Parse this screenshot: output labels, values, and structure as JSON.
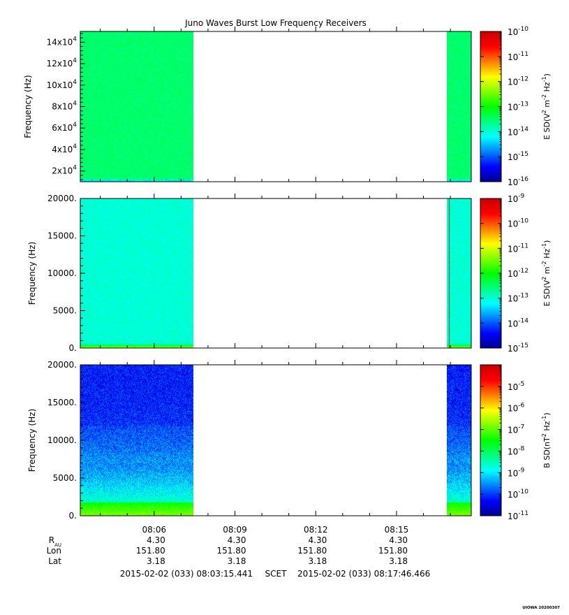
{
  "figure": {
    "title": "Juno Waves Burst Low Frequency Receivers",
    "stamp": "UIOWA 20200307",
    "time_axis": {
      "tick_labels": [
        "08:06",
        "08:09",
        "08:12",
        "08:15"
      ],
      "start_seconds": 28995.441,
      "end_seconds": 29866.466
    },
    "ephemeris": {
      "rows": [
        {
          "label": "R",
          "subscript": "AU",
          "values": [
            "4.30",
            "4.30",
            "4.30",
            "4.30"
          ]
        },
        {
          "label": "Lon",
          "subscript": "",
          "values": [
            "151.80",
            "151.80",
            "151.80",
            "151.80"
          ]
        },
        {
          "label": "Lat",
          "subscript": "",
          "values": [
            "3.18",
            "3.18",
            "3.18",
            "3.18"
          ]
        }
      ]
    },
    "footer": {
      "start": "2015-02-02 (033) 08:03:15.441",
      "scet": "SCET",
      "end": "2015-02-02 (033) 08:17:46.466"
    },
    "colors": {
      "colormap": [
        "#00008c",
        "#0000ff",
        "#0080ff",
        "#00ffff",
        "#00ff80",
        "#00ff00",
        "#80ff00",
        "#ffff00",
        "#ff8000",
        "#ff0000",
        "#c80000"
      ]
    }
  },
  "chart_data": [
    {
      "type": "heatmap",
      "panel": "E-field high band",
      "ylabel": "Frequency (Hz)",
      "ylim": [
        10000,
        150000
      ],
      "y_tick_labels": [
        {
          "v": 20000,
          "m": "2x10",
          "e": "4"
        },
        {
          "v": 40000,
          "m": "4x10",
          "e": "4"
        },
        {
          "v": 60000,
          "m": "6x10",
          "e": "4"
        },
        {
          "v": 80000,
          "m": "8x10",
          "e": "4"
        },
        {
          "v": 100000,
          "m": "10x10",
          "e": "4"
        },
        {
          "v": 120000,
          "m": "12x10",
          "e": "4"
        },
        {
          "v": 140000,
          "m": "14x10",
          "e": "4"
        }
      ],
      "data_intervals": [
        {
          "start": "08:03:15",
          "end": "08:07:27"
        },
        {
          "start": "08:16:52",
          "end": "08:17:46"
        }
      ],
      "colorbar": {
        "label": "E SD(V",
        "label_suffix": "m",
        "unit_tail": "Hz",
        "scale": "log",
        "range_exp": [
          -16,
          -10
        ],
        "tick_labels": [
          {
            "m": "10",
            "e": "-10"
          },
          {
            "m": "10",
            "e": "-11"
          },
          {
            "m": "10",
            "e": "-12"
          },
          {
            "m": "10",
            "e": "-13"
          },
          {
            "m": "10",
            "e": "-14"
          },
          {
            "m": "10",
            "e": "-15"
          },
          {
            "m": "10",
            "e": "-16"
          }
        ]
      },
      "typical_level_exp": -13.5
    },
    {
      "type": "heatmap",
      "panel": "E-field low band",
      "ylabel": "Frequency (Hz)",
      "ylim": [
        0,
        20000
      ],
      "y_tick_labels": [
        {
          "v": 0,
          "m": "0.",
          "e": ""
        },
        {
          "v": 5000,
          "m": "5000.",
          "e": ""
        },
        {
          "v": 10000,
          "m": "10000.",
          "e": ""
        },
        {
          "v": 15000,
          "m": "15000.",
          "e": ""
        },
        {
          "v": 20000,
          "m": "20000.",
          "e": ""
        }
      ],
      "data_intervals": [
        {
          "start": "08:03:15",
          "end": "08:07:27"
        },
        {
          "start": "08:16:52",
          "end": "08:17:46"
        }
      ],
      "colorbar": {
        "label": "E SD(V",
        "label_suffix": "m",
        "unit_tail": "Hz",
        "scale": "log",
        "range_exp": [
          -15,
          -9
        ],
        "tick_labels": [
          {
            "m": "10",
            "e": "-9"
          },
          {
            "m": "10",
            "e": "-10"
          },
          {
            "m": "10",
            "e": "-11"
          },
          {
            "m": "10",
            "e": "-12"
          },
          {
            "m": "10",
            "e": "-13"
          },
          {
            "m": "10",
            "e": "-14"
          },
          {
            "m": "10",
            "e": "-15"
          }
        ]
      },
      "typical_level_exp": -13.0
    },
    {
      "type": "heatmap",
      "panel": "B-field",
      "ylabel": "Frequency (Hz)",
      "ylim": [
        0,
        20000
      ],
      "y_tick_labels": [
        {
          "v": 0,
          "m": "0.",
          "e": ""
        },
        {
          "v": 5000,
          "m": "5000.",
          "e": ""
        },
        {
          "v": 10000,
          "m": "10000.",
          "e": ""
        },
        {
          "v": 15000,
          "m": "15000.",
          "e": ""
        },
        {
          "v": 20000,
          "m": "20000.",
          "e": ""
        }
      ],
      "data_intervals": [
        {
          "start": "08:03:15",
          "end": "08:07:27"
        },
        {
          "start": "08:16:52",
          "end": "08:17:46"
        }
      ],
      "colorbar": {
        "label": "B SD(nT",
        "label_suffix": "",
        "unit_tail": "Hz",
        "scale": "log",
        "range_exp": [
          -11,
          -4
        ],
        "tick_labels": [
          {
            "m": "10",
            "e": "-5"
          },
          {
            "m": "10",
            "e": "-6"
          },
          {
            "m": "10",
            "e": "-7"
          },
          {
            "m": "10",
            "e": "-8"
          },
          {
            "m": "10",
            "e": "-9"
          },
          {
            "m": "10",
            "e": "-10"
          },
          {
            "m": "10",
            "e": "-11"
          }
        ]
      },
      "typical_level_exp": -10.0
    }
  ]
}
